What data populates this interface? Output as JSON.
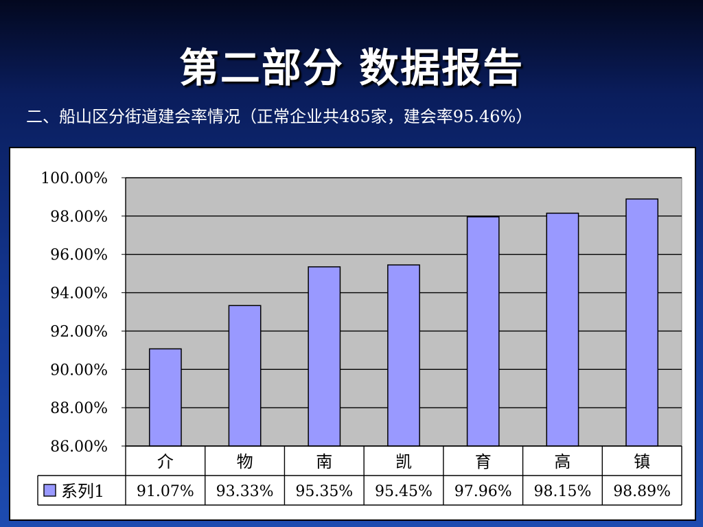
{
  "slide": {
    "title": "第二部分  数据报告",
    "subtitle": "二、船山区分街道建会率情况（正常企业共485家，建会率95.46%）"
  },
  "chart_data": {
    "type": "bar",
    "categories": [
      "介",
      "物",
      "南",
      "凯",
      "育",
      "高",
      "镇"
    ],
    "series": [
      {
        "name": "系列1",
        "values": [
          91.07,
          93.33,
          95.35,
          95.45,
          97.96,
          98.15,
          98.89
        ],
        "labels": [
          "91.07%",
          "93.33%",
          "95.35%",
          "95.45%",
          "97.96%",
          "98.15%",
          "98.89%"
        ]
      }
    ],
    "y_ticks": [
      "100.00%",
      "98.00%",
      "96.00%",
      "94.00%",
      "92.00%",
      "90.00%",
      "88.00%",
      "86.00%"
    ],
    "ylim": [
      86,
      100
    ],
    "grid": true,
    "data_table": true,
    "colors": {
      "bar_fill": "#9999ff",
      "plot_bg": "#c0c0c0",
      "legend_key": "#9999ff"
    }
  }
}
